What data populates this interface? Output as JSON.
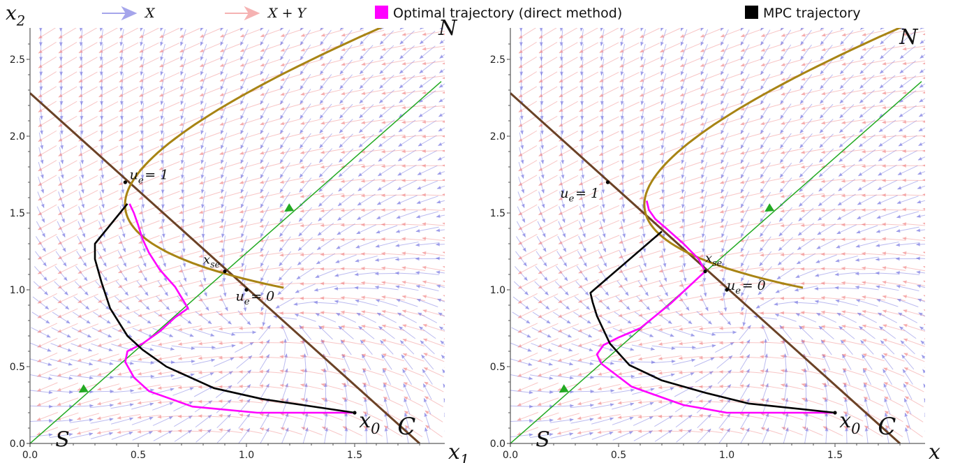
{
  "legend": {
    "items": [
      {
        "label": "X",
        "color": "#6a6adf",
        "kind": "arrow"
      },
      {
        "label": "X + Y",
        "color": "#f08080",
        "kind": "arrow"
      },
      {
        "label": "Optimal trajectory (direct method)",
        "color": "#ff00ff",
        "kind": "square"
      },
      {
        "label": "MPC trajectory",
        "color": "#000000",
        "kind": "square"
      }
    ]
  },
  "colors": {
    "field_X": "#6a6adf",
    "field_XY": "#f08080",
    "optimal": "#ff00ff",
    "mpc": "#000000",
    "curve_C": "#6b4226",
    "curve_N": "#a88414",
    "line_S": "#22aa22",
    "label_C": "#5a1a0a",
    "label_S": "#2a8a2a"
  },
  "chart_data": [
    {
      "type": "line",
      "panel": "left",
      "xlabel": "x1",
      "ylabel": "x2",
      "xlim": [
        0,
        1.9
      ],
      "ylim": [
        0,
        2.7
      ],
      "xticks": [
        "0.0",
        "0.5",
        "1.0",
        "1.5"
      ],
      "yticks": [
        "0.0",
        "0.5",
        "1.0",
        "1.5",
        "2.0",
        "2.5"
      ],
      "xtick_values": [
        0,
        0.5,
        1.0,
        1.5
      ],
      "ytick_values": [
        0,
        0.5,
        1.0,
        1.5,
        2.0,
        2.5
      ],
      "curve_labels": {
        "C": "C",
        "N": "N",
        "S": "S"
      },
      "point_labels": {
        "x0": "x0",
        "xse": "xse",
        "ue1": "ue = 1",
        "ue0": "ue = 0"
      },
      "points": {
        "x0": [
          1.5,
          0.2
        ],
        "xse": [
          0.9,
          1.12
        ],
        "ue1": [
          0.44,
          1.7
        ],
        "ue0": [
          1.0,
          1.0
        ]
      },
      "series": [
        {
          "name": "Optimal trajectory (direct method)",
          "x": [
            1.5,
            1.05,
            0.75,
            0.55,
            0.48,
            0.44,
            0.45,
            0.52,
            0.6,
            0.67,
            0.73,
            0.67,
            0.6,
            0.55,
            0.52,
            0.5,
            0.48,
            0.46
          ],
          "y": [
            0.2,
            0.2,
            0.24,
            0.34,
            0.43,
            0.53,
            0.6,
            0.65,
            0.73,
            0.82,
            0.88,
            1.02,
            1.13,
            1.24,
            1.33,
            1.42,
            1.5,
            1.56
          ]
        },
        {
          "name": "MPC trajectory",
          "x": [
            1.5,
            1.07,
            0.85,
            0.63,
            0.52,
            0.45,
            0.37,
            0.33,
            0.3,
            0.3,
            0.45
          ],
          "y": [
            0.2,
            0.29,
            0.36,
            0.5,
            0.61,
            0.7,
            0.88,
            1.05,
            1.2,
            1.3,
            1.56
          ]
        }
      ]
    },
    {
      "type": "line",
      "panel": "right",
      "xlabel": "x",
      "xlim": [
        0,
        1.9
      ],
      "ylim": [
        0,
        2.7
      ],
      "xticks": [
        "0.0",
        "0.5",
        "1.0",
        "1.5"
      ],
      "yticks": [
        "0.0",
        "0.5",
        "1.0",
        "1.5",
        "2.0",
        "2.5"
      ],
      "xtick_values": [
        0,
        0.5,
        1.0,
        1.5
      ],
      "ytick_values": [
        0,
        0.5,
        1.0,
        1.5,
        2.0,
        2.5
      ],
      "curve_labels": {
        "C": "C",
        "N": "N",
        "S": "S"
      },
      "point_labels": {
        "x0": "x0",
        "xse": "xse",
        "ue1": "ue = 1",
        "ue0": "ue = 0"
      },
      "points": {
        "x0": [
          1.5,
          0.2
        ],
        "xse": [
          0.9,
          1.12
        ],
        "ue1": [
          0.45,
          1.7
        ],
        "ue0": [
          1.0,
          1.0
        ]
      },
      "series": [
        {
          "name": "Optimal trajectory (direct method)",
          "x": [
            1.5,
            1.0,
            0.8,
            0.56,
            0.42,
            0.4,
            0.43,
            0.5,
            0.6,
            0.74,
            0.9,
            0.87,
            0.8,
            0.72,
            0.67,
            0.64,
            0.63
          ],
          "y": [
            0.2,
            0.2,
            0.25,
            0.37,
            0.52,
            0.58,
            0.64,
            0.69,
            0.75,
            0.91,
            1.12,
            1.2,
            1.3,
            1.4,
            1.46,
            1.52,
            1.58
          ]
        },
        {
          "name": "MPC trajectory",
          "x": [
            1.5,
            1.1,
            0.9,
            0.7,
            0.55,
            0.46,
            0.4,
            0.38,
            0.37,
            0.7
          ],
          "y": [
            0.2,
            0.26,
            0.33,
            0.41,
            0.51,
            0.65,
            0.83,
            0.92,
            0.98,
            1.38
          ]
        }
      ]
    }
  ]
}
